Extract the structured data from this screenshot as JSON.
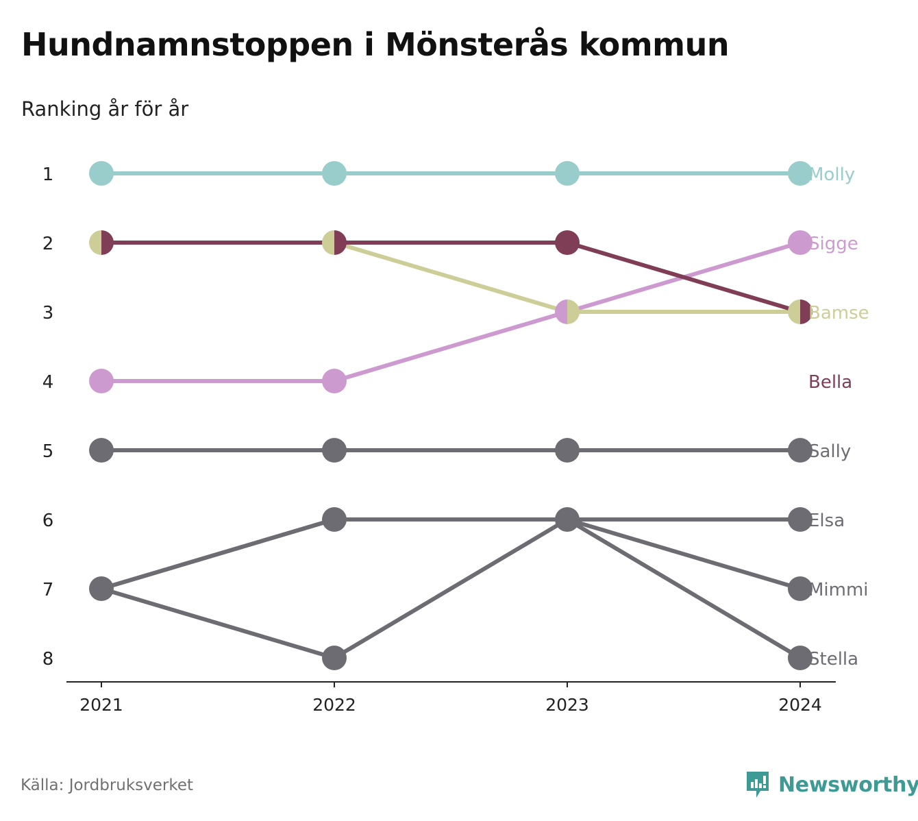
{
  "title": "Hundnamnstoppen i Mönsterås kommun",
  "subtitle": "Ranking år för år",
  "source": "Källa: Jordbruksverket",
  "brand": {
    "name": "Newsworthy",
    "icon": "newsworthy-logo-icon",
    "color": "#3d9a95"
  },
  "chart_data": {
    "type": "line",
    "title": "Hundnamnstoppen i Mönsterås kommun",
    "subtitle": "Ranking år för år",
    "x": [
      "2021",
      "2022",
      "2023",
      "2024"
    ],
    "y_ticks": [
      "1",
      "2",
      "3",
      "4",
      "5",
      "6",
      "7",
      "8"
    ],
    "y_reversed": true,
    "ylim": [
      1,
      8
    ],
    "grid": false,
    "legend": "direct labels at right",
    "series": [
      {
        "name": "Molly",
        "color": "#98cdcc",
        "values": [
          1,
          1,
          1,
          1
        ]
      },
      {
        "name": "Sigge",
        "color": "#cd9acf",
        "values": [
          4,
          4,
          3,
          2
        ]
      },
      {
        "name": "Bamse",
        "color": "#cdcd98",
        "values": [
          2,
          2,
          3,
          3
        ]
      },
      {
        "name": "Bella",
        "color": "#7f3e55",
        "values": [
          2,
          2,
          2,
          3
        ],
        "label_rank": 4
      },
      {
        "name": "Sally",
        "color": "#6d6c73",
        "values": [
          5,
          5,
          5,
          5
        ]
      },
      {
        "name": "Elsa",
        "color": "#6d6c73",
        "values": [
          7,
          6,
          6,
          6
        ]
      },
      {
        "name": "Mimmi",
        "color": "#6d6c73",
        "values": [
          7,
          6,
          6,
          7
        ]
      },
      {
        "name": "Stella",
        "color": "#6d6c73",
        "values": [
          7,
          8,
          6,
          8
        ]
      }
    ]
  }
}
